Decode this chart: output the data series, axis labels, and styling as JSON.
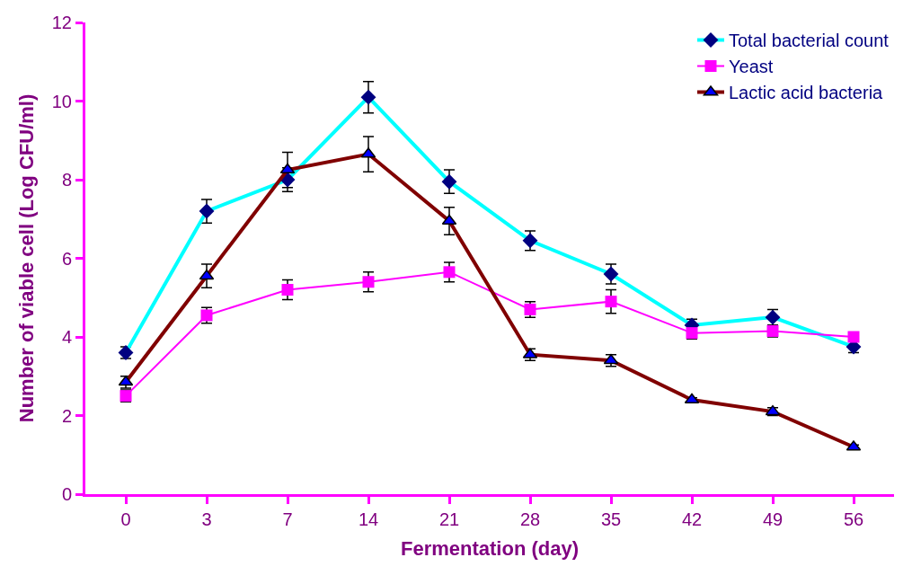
{
  "chart_data": {
    "type": "line",
    "xlabel": "Fermentation (day)",
    "ylabel": "Number of viable cell (Log CFU/ml)",
    "categories": [
      "0",
      "3",
      "7",
      "14",
      "21",
      "28",
      "35",
      "42",
      "49",
      "56"
    ],
    "ylim": [
      0,
      12
    ],
    "yticks": [
      0,
      2,
      4,
      6,
      8,
      10,
      12
    ],
    "legend": "top right",
    "series": [
      {
        "name": "Total bacterial count",
        "color": "#000080",
        "marker": "diamond",
        "values": [
          3.6,
          7.2,
          8.0,
          10.1,
          7.95,
          6.45,
          5.6,
          4.3,
          4.5,
          3.75
        ],
        "errors": [
          0.15,
          0.3,
          0.3,
          0.4,
          0.3,
          0.25,
          0.25,
          0.15,
          0.2,
          0.15
        ]
      },
      {
        "name": "Yeast",
        "color": "#ff00ff",
        "marker": "square",
        "values": [
          2.5,
          4.55,
          5.2,
          5.4,
          5.65,
          4.7,
          4.9,
          4.1,
          4.15,
          4.0
        ],
        "errors": [
          0.15,
          0.2,
          0.25,
          0.25,
          0.25,
          0.2,
          0.3,
          0.15,
          0.15,
          null
        ]
      },
      {
        "name": "Lactic acid bacteria",
        "color": "#0000ff",
        "marker": "triangle",
        "values": [
          2.85,
          5.55,
          8.25,
          8.65,
          6.95,
          3.55,
          3.4,
          2.4,
          2.1,
          1.2
        ],
        "errors": [
          0.15,
          0.3,
          0.45,
          0.45,
          0.35,
          0.15,
          0.15,
          0.05,
          0.1,
          0.05
        ]
      }
    ]
  }
}
